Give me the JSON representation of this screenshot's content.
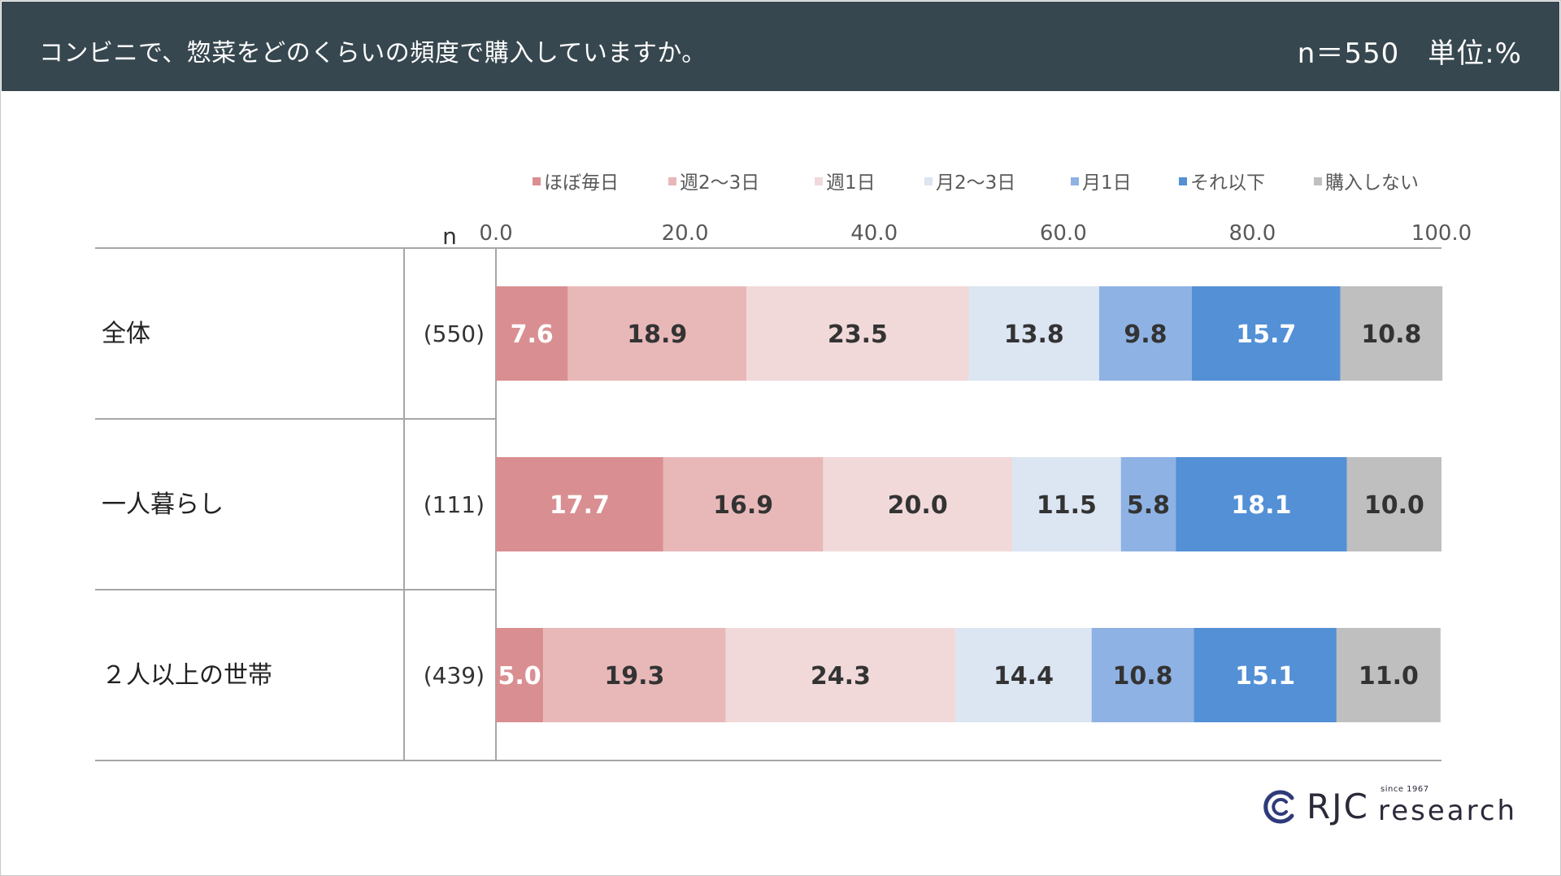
{
  "header": {
    "title": "コンビニで、惣菜をどのくらいの頻度で購入していますか。",
    "meta": "n＝550　単位:%"
  },
  "chart_data": {
    "type": "bar",
    "orientation": "horizontal",
    "stacked": true,
    "n_label": "n",
    "xlim": [
      0,
      100
    ],
    "tick_values": [
      0,
      20,
      40,
      60,
      80,
      100
    ],
    "tick_labels": [
      "0.0",
      "20.0",
      "40.0",
      "60.0",
      "80.0",
      "100.0"
    ],
    "legend_position": "top",
    "categories": [
      "全体",
      "一人暮らし",
      "２人以上の世帯"
    ],
    "n_values": [
      "(550)",
      "(111)",
      "(439)"
    ],
    "series": [
      {
        "name": "ほぼ毎日",
        "color": "#d98f91",
        "label_color": "#ffffff",
        "values": [
          7.6,
          17.7,
          5.0
        ]
      },
      {
        "name": "週2～3日",
        "color": "#e8b8b9",
        "label_color": "#333333",
        "values": [
          18.9,
          16.9,
          19.3
        ]
      },
      {
        "name": "週1日",
        "color": "#f1d9da",
        "label_color": "#333333",
        "values": [
          23.5,
          20.0,
          24.3
        ]
      },
      {
        "name": "月2～3日",
        "color": "#dce5f2",
        "label_color": "#333333",
        "values": [
          13.8,
          11.5,
          14.4
        ]
      },
      {
        "name": "月1日",
        "color": "#8eb2e3",
        "label_color": "#333333",
        "values": [
          9.8,
          5.8,
          10.8
        ]
      },
      {
        "name": "それ以下",
        "color": "#5490d6",
        "label_color": "#ffffff",
        "values": [
          15.7,
          18.1,
          15.1
        ]
      },
      {
        "name": "購入しない",
        "color": "#bfbfbf",
        "label_color": "#333333",
        "values": [
          10.8,
          10.0,
          11.0
        ]
      }
    ]
  },
  "logo": {
    "brand": "RJC",
    "tagline": "since 1967",
    "word": "research"
  }
}
